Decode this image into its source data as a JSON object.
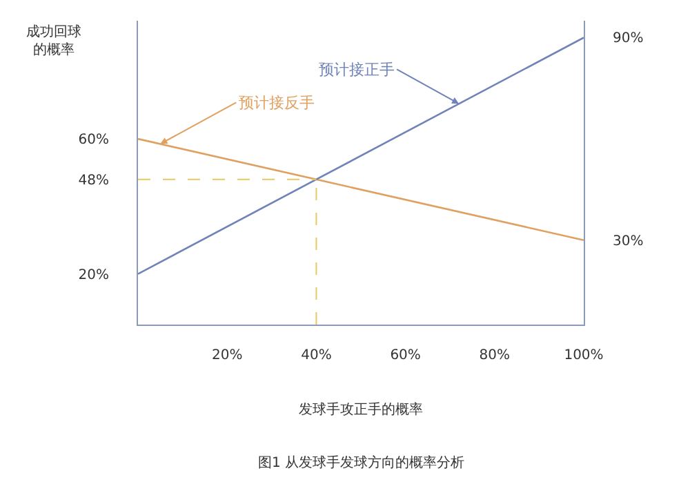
{
  "chart_data": {
    "type": "line",
    "ylabel": "成功回球的概率",
    "xlabel": "发球手攻正手的概率",
    "x": [
      0,
      100
    ],
    "series": [
      {
        "name": "预计接反手",
        "color": "#e0a060",
        "values": [
          60,
          30
        ]
      },
      {
        "name": "预计接正手",
        "color": "#7083b8",
        "values": [
          20,
          90
        ],
        "axis": "y2"
      }
    ],
    "xlim": [
      0,
      100
    ],
    "xticks": [
      {
        "value": 20,
        "label": "20%"
      },
      {
        "value": 40,
        "label": "40%"
      },
      {
        "value": 60,
        "label": "60%"
      },
      {
        "value": 80,
        "label": "80%"
      },
      {
        "value": 100,
        "label": "100%"
      }
    ],
    "ylim": [
      5,
      95
    ],
    "yticks": [
      {
        "value": 20,
        "label": "20%"
      },
      {
        "value": 48,
        "label": "48%"
      },
      {
        "value": 60,
        "label": "60%"
      }
    ],
    "y2lim": [
      5,
      95
    ],
    "y2ticks": [
      {
        "value": 30,
        "label": "30%"
      },
      {
        "value": 90,
        "label": "90%"
      }
    ],
    "ref_lines": [
      {
        "axis": "y",
        "value": 48,
        "color": "#e8c860",
        "line_style": "dashed"
      },
      {
        "axis": "x",
        "value": 40,
        "color": "#e8c860",
        "line_style": "dashed"
      }
    ],
    "annotations": [
      "图1 从发球手发球方向的概率分析"
    ],
    "legend": false,
    "marker": "none",
    "line_style": "solid"
  }
}
